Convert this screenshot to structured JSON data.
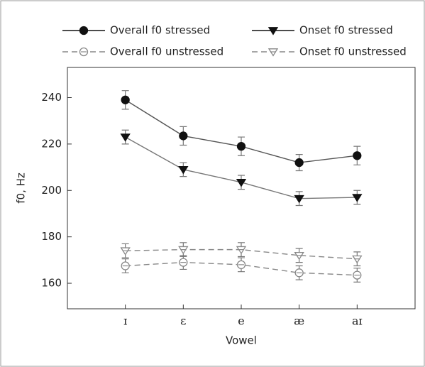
{
  "chart_data": {
    "type": "line",
    "xlabel": "Vowel",
    "ylabel": "f0, Hz",
    "categories": [
      "ɪ",
      "ɛ",
      "e",
      "æ",
      "aɪ"
    ],
    "ylim": [
      149,
      253
    ],
    "yticks": [
      160,
      180,
      200,
      220,
      240
    ],
    "series": [
      {
        "name": "Overall f0 stressed",
        "color": "#555555",
        "marker": "filled-circle",
        "dashed": false,
        "values": [
          239,
          223.5,
          219,
          212,
          215
        ],
        "errors": [
          4,
          4,
          4,
          3.5,
          4
        ]
      },
      {
        "name": "Onset f0 stressed",
        "color": "#777777",
        "marker": "filled-triangle-down",
        "dashed": false,
        "values": [
          223,
          209,
          203.5,
          196.5,
          197
        ],
        "errors": [
          3,
          3,
          3,
          3,
          3
        ]
      },
      {
        "name": "Overall f0 unstressed",
        "color": "#888888",
        "marker": "open-circle",
        "dashed": true,
        "values": [
          167.5,
          169,
          168,
          164.5,
          163.5
        ],
        "errors": [
          3,
          3,
          3,
          3,
          3
        ]
      },
      {
        "name": "Onset f0 unstressed",
        "color": "#888888",
        "marker": "open-triangle-down",
        "dashed": true,
        "values": [
          174,
          174.5,
          174.5,
          172,
          170.5
        ],
        "errors": [
          3,
          3,
          3,
          3,
          3
        ]
      }
    ]
  }
}
